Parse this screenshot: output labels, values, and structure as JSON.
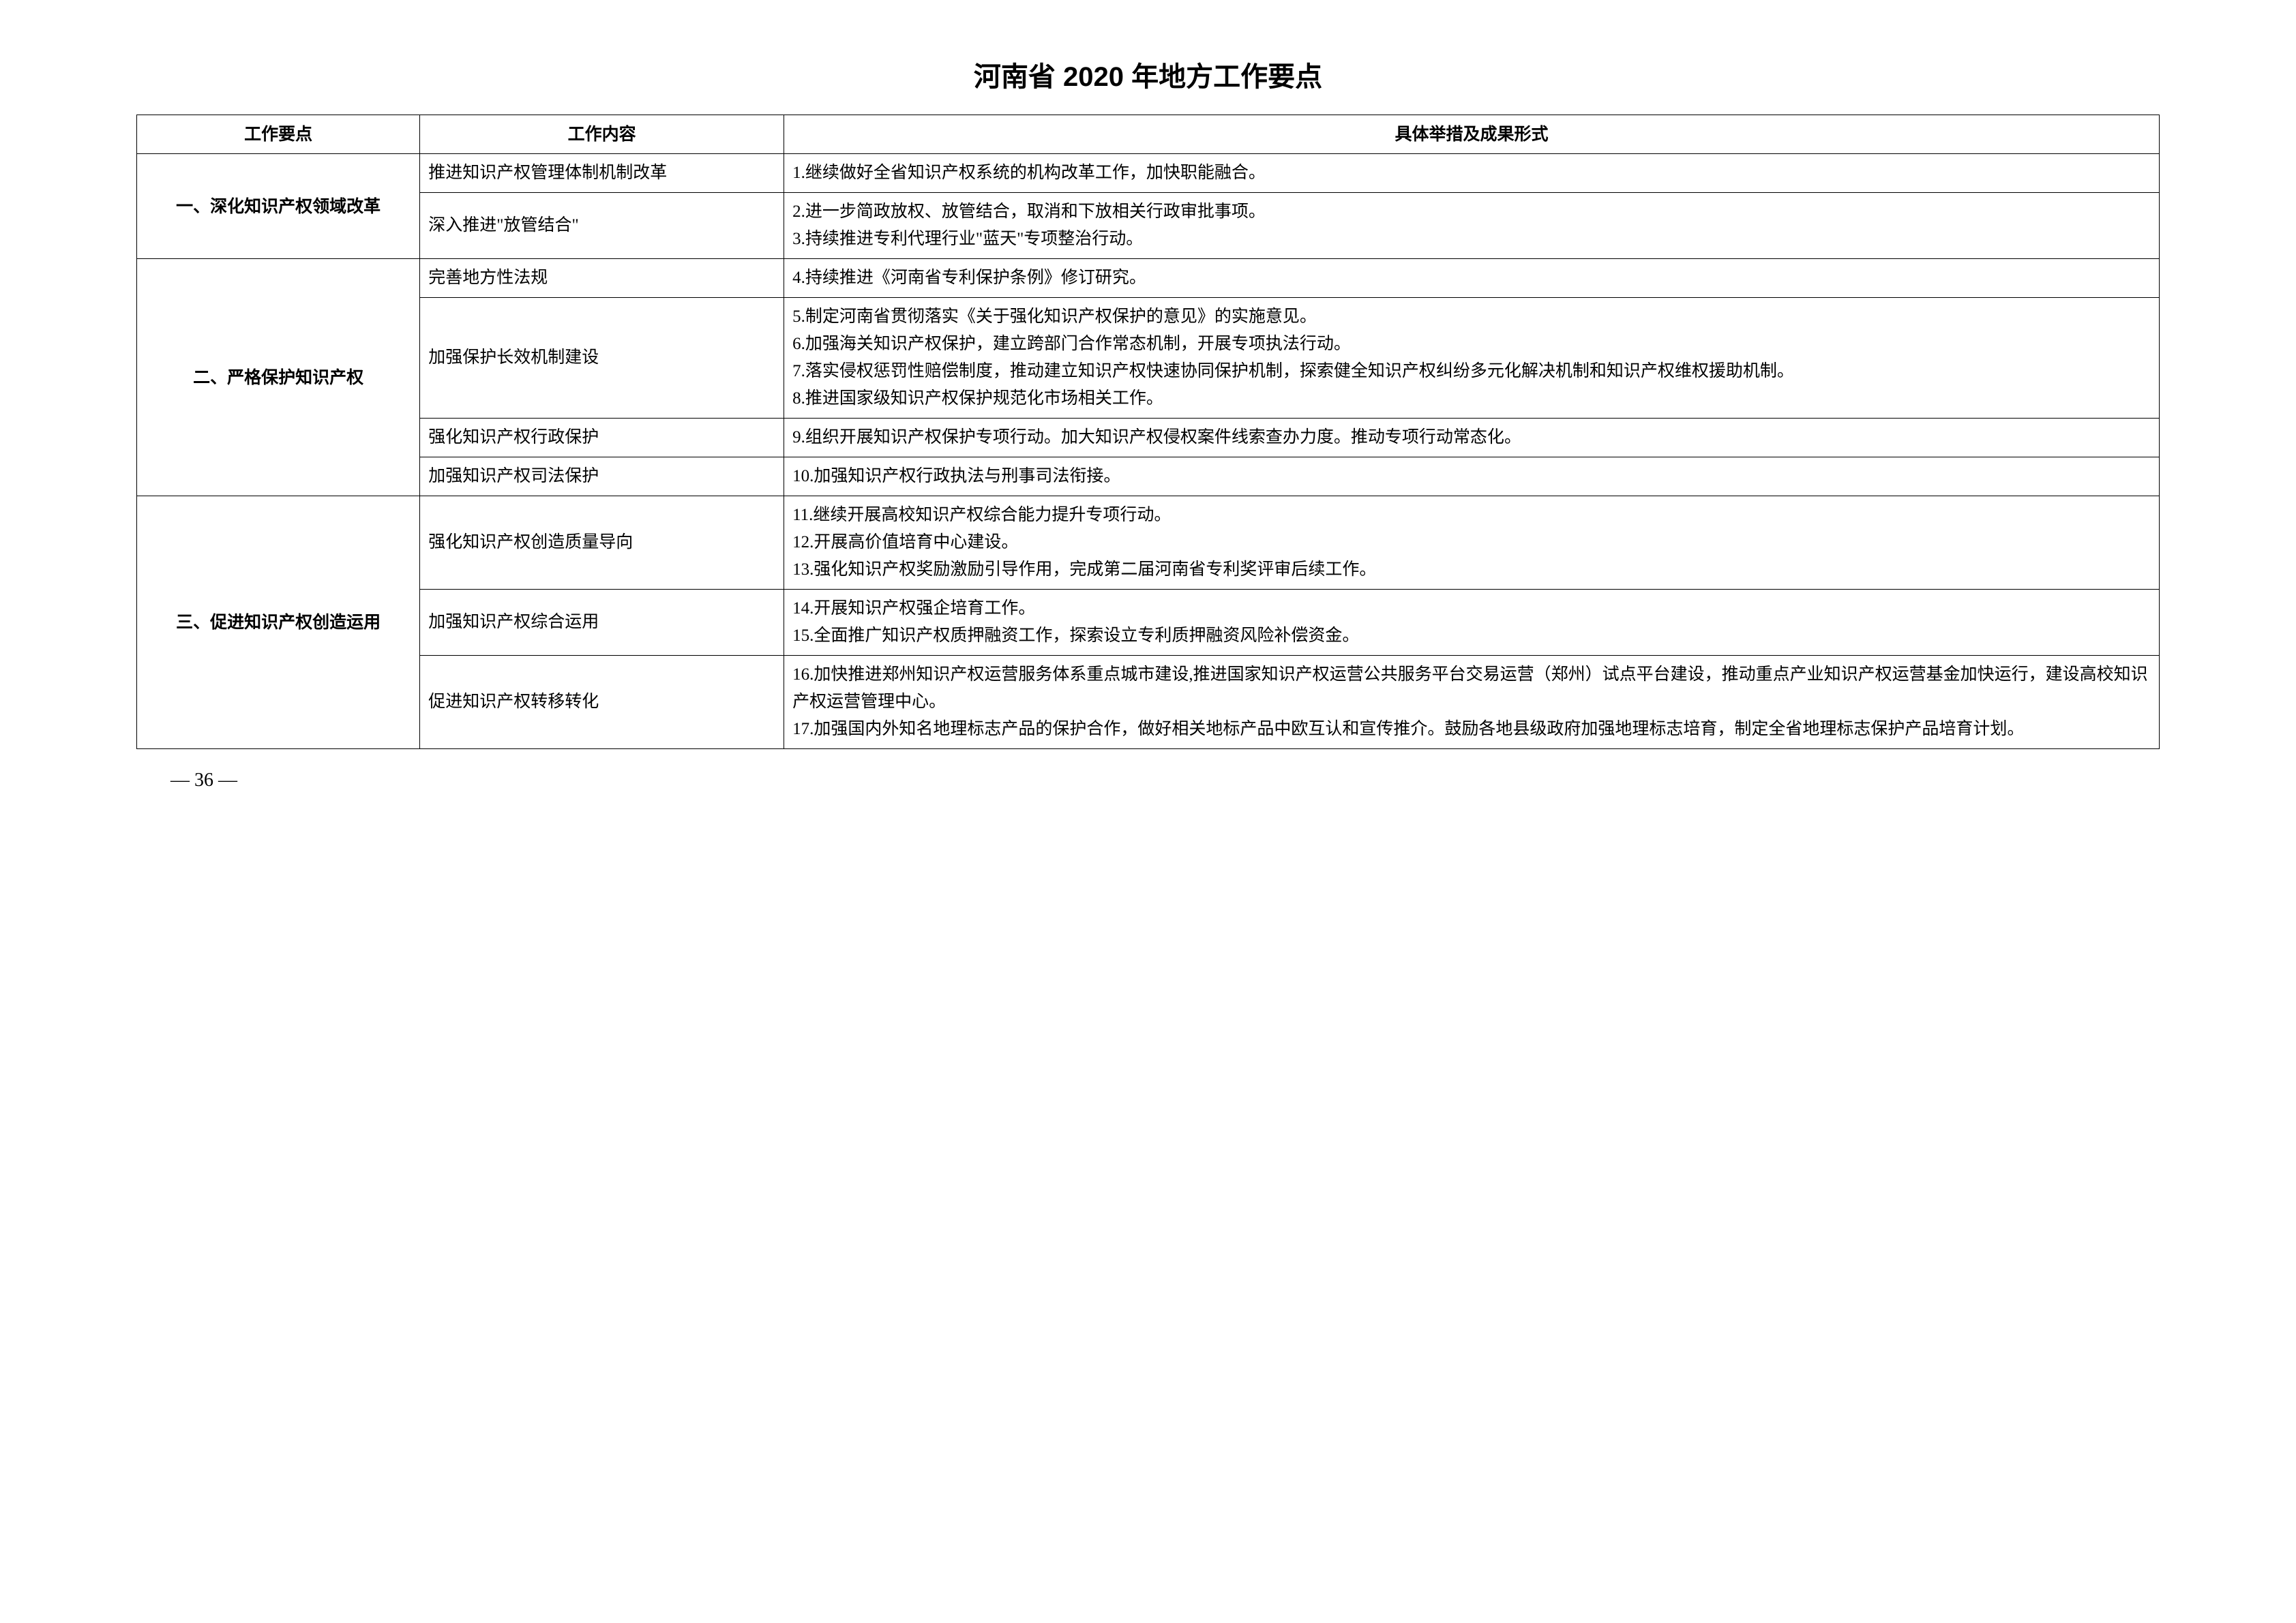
{
  "title": "河南省 2020 年地方工作要点",
  "headers": {
    "col1": "工作要点",
    "col2": "工作内容",
    "col3": "具体举措及成果形式"
  },
  "sections": [
    {
      "yaodian": "一、深化知识产权领域改革",
      "rows": [
        {
          "neirong": "推进知识产权管理体制机制改革",
          "juti": "1.继续做好全省知识产权系统的机构改革工作，加快职能融合。"
        },
        {
          "neirong": "深入推进\"放管结合\"",
          "juti": "2.进一步简政放权、放管结合，取消和下放相关行政审批事项。\n3.持续推进专利代理行业\"蓝天\"专项整治行动。"
        }
      ]
    },
    {
      "yaodian": "二、严格保护知识产权",
      "rows": [
        {
          "neirong": "完善地方性法规",
          "juti": "4.持续推进《河南省专利保护条例》修订研究。"
        },
        {
          "neirong": "加强保护长效机制建设",
          "juti": "5.制定河南省贯彻落实《关于强化知识产权保护的意见》的实施意见。\n6.加强海关知识产权保护，建立跨部门合作常态机制，开展专项执法行动。\n7.落实侵权惩罚性赔偿制度，推动建立知识产权快速协同保护机制，探索健全知识产权纠纷多元化解决机制和知识产权维权援助机制。\n8.推进国家级知识产权保护规范化市场相关工作。"
        },
        {
          "neirong": "强化知识产权行政保护",
          "juti": "9.组织开展知识产权保护专项行动。加大知识产权侵权案件线索查办力度。推动专项行动常态化。"
        },
        {
          "neirong": "加强知识产权司法保护",
          "juti": "10.加强知识产权行政执法与刑事司法衔接。"
        }
      ]
    },
    {
      "yaodian": "三、促进知识产权创造运用",
      "rows": [
        {
          "neirong": "强化知识产权创造质量导向",
          "juti": "11.继续开展高校知识产权综合能力提升专项行动。\n12.开展高价值培育中心建设。\n13.强化知识产权奖励激励引导作用，完成第二届河南省专利奖评审后续工作。"
        },
        {
          "neirong": "加强知识产权综合运用",
          "juti": "14.开展知识产权强企培育工作。\n15.全面推广知识产权质押融资工作，探索设立专利质押融资风险补偿资金。"
        },
        {
          "neirong": "促进知识产权转移转化",
          "juti": "16.加快推进郑州知识产权运营服务体系重点城市建设,推进国家知识产权运营公共服务平台交易运营（郑州）试点平台建设，推动重点产业知识产权运营基金加快运行，建设高校知识产权运营管理中心。\n17.加强国内外知名地理标志产品的保护合作，做好相关地标产品中欧互认和宣传推介。鼓励各地县级政府加强地理标志培育，制定全省地理标志保护产品培育计划。"
        }
      ]
    }
  ],
  "page_number": "— 36 —"
}
